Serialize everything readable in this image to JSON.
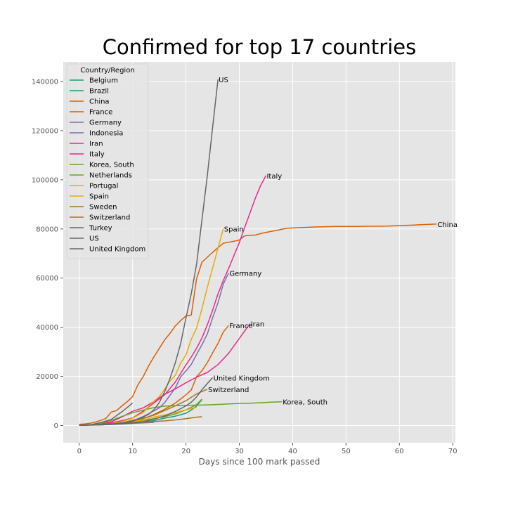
{
  "chart_data": {
    "type": "line",
    "title": "Confirmed for top 17 countries",
    "xlabel": "Days since 100 mark passed",
    "ylabel": "",
    "xlim": [
      -3,
      70.5
    ],
    "ylim": [
      -7000,
      148000
    ],
    "xticks": [
      "0",
      "10",
      "20",
      "30",
      "40",
      "50",
      "60",
      "70"
    ],
    "yticks": [
      "0",
      "20000",
      "40000",
      "60000",
      "80000",
      "100000",
      "120000",
      "140000"
    ],
    "grid": true,
    "legend": {
      "title": "Country/Region",
      "placement": "top-left"
    },
    "series": [
      {
        "name": "Belgium",
        "color": "#1b9e77",
        "label": "",
        "x": [
          0,
          2,
          4,
          6,
          8,
          10,
          12,
          14,
          16,
          18,
          20,
          21,
          22,
          23
        ],
        "y": [
          100,
          200,
          300,
          400,
          600,
          900,
          1300,
          2000,
          3000,
          3800,
          5000,
          6300,
          8000,
          10600
        ]
      },
      {
        "name": "Brazil",
        "color": "#1b9e77",
        "label": "",
        "x": [
          0,
          2,
          4,
          6,
          8,
          10,
          12,
          14
        ],
        "y": [
          100,
          200,
          400,
          500,
          700,
          900,
          1200,
          1500
        ]
      },
      {
        "name": "China",
        "color": "#d95f02",
        "label": "China",
        "x": [
          0,
          1,
          2,
          3,
          4,
          5,
          6,
          7,
          8,
          9,
          10,
          11,
          12,
          13,
          14,
          15,
          16,
          17,
          18,
          19,
          20,
          21,
          22,
          23,
          24,
          25,
          26,
          27,
          28,
          29,
          30,
          31,
          32,
          33,
          34,
          35,
          36,
          37,
          38,
          39,
          40,
          42,
          44,
          46,
          48,
          50,
          52,
          54,
          56,
          58,
          60,
          62,
          64,
          66,
          67
        ],
        "y": [
          500,
          640,
          920,
          1400,
          2100,
          2900,
          5500,
          6100,
          8000,
          9700,
          11800,
          16600,
          20000,
          24300,
          28000,
          31400,
          34800,
          37500,
          40500,
          42700,
          44600,
          45000,
          59800,
          66500,
          68500,
          70500,
          72400,
          74200,
          74600,
          75000,
          75500,
          77200,
          77400,
          77500,
          78100,
          78600,
          79000,
          79400,
          79900,
          80300,
          80400,
          80600,
          80800,
          80900,
          81000,
          81000,
          81000,
          81100,
          81100,
          81200,
          81400,
          81500,
          81700,
          81900,
          82000
        ]
      },
      {
        "name": "France",
        "color": "#d95f02",
        "label": "France",
        "x": [
          0,
          2,
          4,
          6,
          8,
          10,
          12,
          14,
          16,
          18,
          20,
          21,
          22,
          23,
          24,
          25,
          26,
          27,
          28
        ],
        "y": [
          100,
          200,
          300,
          500,
          1100,
          1800,
          2800,
          4500,
          6600,
          9100,
          12500,
          14500,
          19900,
          22300,
          25600,
          29600,
          33400,
          38100,
          40700
        ]
      },
      {
        "name": "Germany",
        "color": "#7570b3",
        "label": "Germany",
        "x": [
          0,
          2,
          4,
          6,
          8,
          10,
          12,
          13,
          14,
          15,
          16,
          17,
          18,
          19,
          20,
          21,
          22,
          23,
          24,
          25,
          26,
          27,
          28
        ],
        "y": [
          100,
          200,
          400,
          800,
          1100,
          1900,
          3700,
          4800,
          6000,
          7200,
          9300,
          12300,
          15300,
          19800,
          22200,
          24900,
          29000,
          32900,
          37300,
          43900,
          50000,
          57600,
          62000
        ]
      },
      {
        "name": "Indonesia",
        "color": "#7570b3",
        "label": "",
        "x": [
          0,
          2,
          4,
          6,
          8,
          10,
          12,
          14
        ],
        "y": [
          100,
          150,
          300,
          500,
          700,
          900,
          1100,
          1300
        ]
      },
      {
        "name": "Iran",
        "color": "#e7298a",
        "label": "Iran",
        "x": [
          0,
          2,
          4,
          6,
          8,
          10,
          12,
          14,
          16,
          18,
          20,
          22,
          24,
          26,
          28,
          30,
          32
        ],
        "y": [
          100,
          300,
          700,
          1500,
          3500,
          5800,
          7200,
          9800,
          12700,
          14900,
          17400,
          19700,
          21600,
          24800,
          29400,
          35400,
          41500
        ]
      },
      {
        "name": "Italy",
        "color": "#e7298a",
        "label": "Italy",
        "x": [
          0,
          2,
          4,
          6,
          8,
          10,
          12,
          14,
          16,
          17,
          18,
          19,
          20,
          21,
          22,
          23,
          24,
          25,
          26,
          27,
          28,
          29,
          30,
          31,
          32,
          33,
          34,
          35
        ],
        "y": [
          200,
          300,
          700,
          1100,
          2000,
          3100,
          5900,
          9200,
          12500,
          15100,
          17700,
          21200,
          24700,
          27900,
          31500,
          35700,
          41000,
          47000,
          53600,
          59100,
          63900,
          69200,
          74400,
          80600,
          86500,
          92500,
          97700,
          101700
        ]
      },
      {
        "name": "Korea, South",
        "color": "#66a61e",
        "label": "Korea, South",
        "x": [
          0,
          2,
          4,
          6,
          8,
          10,
          12,
          14,
          16,
          18,
          20,
          22,
          24,
          26,
          28,
          30,
          32,
          34,
          36,
          38
        ],
        "y": [
          100,
          300,
          900,
          2100,
          3700,
          5200,
          6300,
          7300,
          7900,
          8100,
          8200,
          8300,
          8400,
          8600,
          8800,
          9000,
          9100,
          9300,
          9500,
          9700
        ]
      },
      {
        "name": "Netherlands",
        "color": "#66a61e",
        "label": "",
        "x": [
          0,
          2,
          4,
          6,
          8,
          10,
          12,
          14,
          16,
          18,
          20,
          21,
          22,
          23
        ],
        "y": [
          100,
          200,
          400,
          600,
          900,
          1400,
          2000,
          2800,
          3600,
          4700,
          6400,
          7400,
          8600,
          10800
        ]
      },
      {
        "name": "Portugal",
        "color": "#e6ab02",
        "label": "",
        "x": [
          0,
          2,
          4,
          6,
          8,
          10,
          12,
          14,
          16,
          18,
          20,
          22
        ],
        "y": [
          100,
          200,
          400,
          600,
          1000,
          1600,
          2300,
          3500,
          4300,
          5200,
          6400,
          7400
        ]
      },
      {
        "name": "Spain",
        "color": "#e6ab02",
        "label": "Spain",
        "x": [
          0,
          2,
          4,
          6,
          8,
          10,
          12,
          13,
          14,
          15,
          16,
          17,
          18,
          19,
          20,
          21,
          22,
          23,
          24,
          25,
          26,
          27
        ],
        "y": [
          100,
          200,
          400,
          700,
          1600,
          3000,
          5300,
          7800,
          9900,
          11800,
          14800,
          18100,
          20400,
          25400,
          28700,
          35100,
          39700,
          47600,
          56200,
          64100,
          72200,
          80100
        ]
      },
      {
        "name": "Sweden",
        "color": "#a6761d",
        "label": "",
        "x": [
          0,
          2,
          4,
          6,
          8,
          10,
          12,
          14,
          16,
          18,
          20,
          22,
          23
        ],
        "y": [
          100,
          300,
          500,
          700,
          900,
          1100,
          1300,
          1600,
          1900,
          2300,
          2800,
          3400,
          3600
        ]
      },
      {
        "name": "Switzerland",
        "color": "#a6761d",
        "label": "Switzerland",
        "x": [
          0,
          2,
          4,
          6,
          8,
          10,
          12,
          14,
          16,
          18,
          20,
          22,
          24
        ],
        "y": [
          100,
          200,
          400,
          600,
          1100,
          2200,
          3000,
          4200,
          6100,
          8000,
          10100,
          12900,
          14800
        ]
      },
      {
        "name": "Turkey",
        "color": "#666666",
        "label": "",
        "x": [
          0,
          2,
          4,
          6,
          8,
          10
        ],
        "y": [
          100,
          300,
          1200,
          2500,
          5600,
          9200
        ]
      },
      {
        "name": "US",
        "color": "#666666",
        "label": "US",
        "x": [
          0,
          2,
          4,
          6,
          8,
          10,
          12,
          13,
          14,
          15,
          16,
          17,
          18,
          19,
          20,
          21,
          22,
          23,
          24,
          25,
          26
        ],
        "y": [
          100,
          200,
          400,
          600,
          1100,
          1700,
          3500,
          4600,
          6400,
          9400,
          13700,
          19100,
          25500,
          33300,
          43800,
          53700,
          65800,
          83800,
          101700,
          121500,
          140900
        ]
      },
      {
        "name": "United Kingdom",
        "color": "#666666",
        "label": "United Kingdom",
        "x": [
          0,
          2,
          4,
          6,
          8,
          10,
          12,
          14,
          16,
          18,
          20,
          21,
          22,
          23,
          24,
          25
        ],
        "y": [
          100,
          200,
          300,
          500,
          800,
          1100,
          1500,
          2600,
          3900,
          5700,
          8000,
          9500,
          11700,
          14600,
          17100,
          19500
        ]
      }
    ]
  }
}
